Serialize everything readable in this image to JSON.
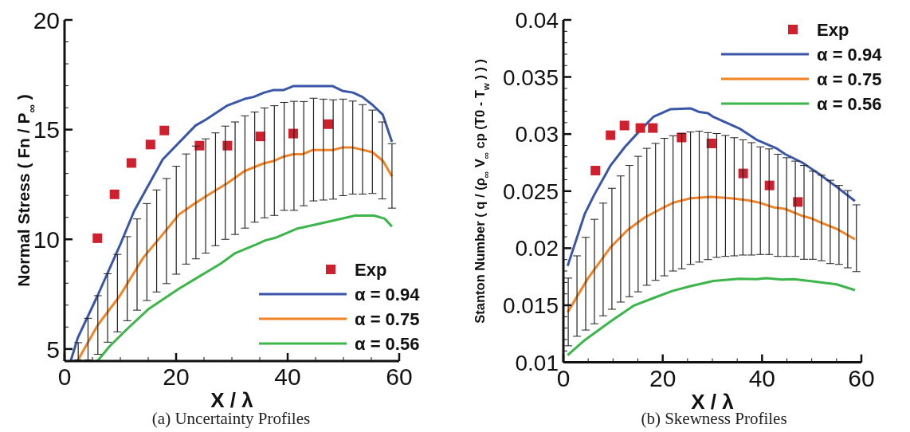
{
  "chart_data": [
    {
      "type": "line",
      "title": "(a) Uncertainty Profiles",
      "xlabel": "X /  λ",
      "ylabel": "Normal Stress ( Fn / P$_{∞}$ )",
      "xlim": [
        0,
        60
      ],
      "ylim": [
        4.45,
        20
      ],
      "xticks": [
        0,
        {
          "value": 5,
          "label": null
        },
        {
          "value": 10,
          "label": null
        },
        {
          "value": 15,
          "label": null
        },
        20,
        {
          "value": 25,
          "label": null
        },
        {
          "value": 30,
          "label": null
        },
        {
          "value": 35,
          "label": null
        },
        40,
        {
          "value": 45,
          "label": null
        },
        {
          "value": 50,
          "label": null
        },
        {
          "value": 55,
          "label": null
        },
        60
      ],
      "yticks": [
        5,
        {
          "value": 6,
          "label": null
        },
        {
          "value": 7,
          "label": null
        },
        {
          "value": 8,
          "label": null
        },
        {
          "value": 9,
          "label": null
        },
        10,
        {
          "value": 11,
          "label": null
        },
        {
          "value": 12,
          "label": null
        },
        {
          "value": 13,
          "label": null
        },
        {
          "value": 14,
          "label": null
        },
        15,
        {
          "value": 16,
          "label": null
        },
        {
          "value": 17,
          "label": null
        },
        {
          "value": 18,
          "label": null
        },
        {
          "value": 19,
          "label": null
        },
        20
      ],
      "legend": "bottom right",
      "series": [
        {
          "type": "bar",
          "color": "#222222",
          "x": [
            2.45,
            4.21,
            5.97,
            7.72,
            9.48,
            11.24,
            13.0,
            14.76,
            16.51,
            18.27,
            20.03,
            21.79,
            23.55,
            25.3,
            27.06,
            28.82,
            30.58,
            32.34,
            34.09,
            35.85,
            37.61,
            39.37,
            41.13,
            42.88,
            44.64,
            46.4,
            48.16,
            49.92,
            51.67,
            53.43,
            55.19,
            56.95,
            58.7
          ],
          "base": [
            4.5,
            4.5,
            4.76,
            5.31,
            5.78,
            6.29,
            6.77,
            7.21,
            7.6,
            7.98,
            8.41,
            8.87,
            9.11,
            9.37,
            9.71,
            10.0,
            10.22,
            10.51,
            10.78,
            10.98,
            11.09,
            11.32,
            11.32,
            11.53,
            11.75,
            11.79,
            11.83,
            11.99,
            12.06,
            12.06,
            12.09,
            11.84,
            11.42
          ],
          "values": [
            0.79,
            1.9,
            2.67,
            3.12,
            3.53,
            3.83,
            4.16,
            4.42,
            4.65,
            4.79,
            4.92,
            5.02,
            5.14,
            5.21,
            5.14,
            5.16,
            5.13,
            5.12,
            5.02,
            5.01,
            5.0,
            4.92,
            4.97,
            4.75,
            4.68,
            4.6,
            4.53,
            4.4,
            4.24,
            4.08,
            3.8,
            3.51,
            2.94
          ]
        },
        {
          "type": "scatter",
          "name": "Exp",
          "marker": "square",
          "color": "#d0202e",
          "x": [
            5.9,
            8.96,
            11.98,
            15.4,
            17.9,
            24.2,
            29.2,
            35.1,
            41.0,
            47.3
          ],
          "values": [
            10.05,
            12.05,
            13.48,
            14.32,
            14.96,
            14.27,
            14.27,
            14.69,
            14.82,
            15.25
          ]
        },
        {
          "name": "α  = 0.94",
          "color": "#3a56a8",
          "x": [
            1.1,
            2.4,
            5.9,
            9.9,
            12.5,
            17.6,
            23.5,
            25.3,
            29.2,
            32.3,
            33.9,
            35.8,
            37.4,
            39.2,
            41.0,
            48.1,
            49.8,
            51.7,
            53.4,
            55.2,
            57.05,
            58.7
          ],
          "values": [
            4.45,
            5.53,
            7.42,
            9.71,
            11.3,
            13.64,
            15.19,
            15.45,
            16.1,
            16.4,
            16.49,
            16.69,
            16.8,
            16.8,
            16.98,
            16.98,
            16.77,
            16.69,
            16.49,
            16.13,
            15.68,
            14.44
          ]
        },
        {
          "name": "α  = 0.75",
          "color": "#f28325",
          "x": [
            2.3,
            5.9,
            9.9,
            14.1,
            18.3,
            20.5,
            23.2,
            25.3,
            29.2,
            32.2,
            35.7,
            37.5,
            39.3,
            41.0,
            42.7,
            44.5,
            48.1,
            49.9,
            51.6,
            55.2,
            57.1,
            58.7
          ],
          "values": [
            4.45,
            6.07,
            7.42,
            9.16,
            10.44,
            11.13,
            11.61,
            11.95,
            12.56,
            13.1,
            13.46,
            13.57,
            13.77,
            13.88,
            13.88,
            14.07,
            14.07,
            14.19,
            14.19,
            13.97,
            13.57,
            12.87
          ]
        },
        {
          "name": "α  = 0.56",
          "color": "#3cb54a",
          "x": [
            5.9,
            8.1,
            11.3,
            15.0,
            20.5,
            23.2,
            28.0,
            30.6,
            34.4,
            36.0,
            37.8,
            41.6,
            45.0,
            48.8,
            52.1,
            55.5,
            57.4,
            58.7
          ],
          "values": [
            4.45,
            5.13,
            5.93,
            6.81,
            7.75,
            8.16,
            8.89,
            9.37,
            9.77,
            9.95,
            10.07,
            10.48,
            10.67,
            10.89,
            11.08,
            11.08,
            10.94,
            10.58
          ]
        }
      ]
    },
    {
      "type": "line",
      "title": "(b) Skewness Profiles",
      "xlabel": "X / λ",
      "ylabel": "Stanton Number ( q / (ρ$_{∞}$ V$_{∞}$ cp (T0 - T$_{w}$ ) ) )",
      "xlim": [
        0,
        60
      ],
      "ylim": [
        0.01,
        0.04
      ],
      "xticks": [
        0,
        {
          "value": 5,
          "label": null
        },
        {
          "value": 10,
          "label": null
        },
        {
          "value": 15,
          "label": null
        },
        20,
        {
          "value": 25,
          "label": null
        },
        {
          "value": 30,
          "label": null
        },
        {
          "value": 35,
          "label": null
        },
        40,
        {
          "value": 45,
          "label": null
        },
        {
          "value": 50,
          "label": null
        },
        {
          "value": 55,
          "label": null
        },
        60
      ],
      "yticks": [
        0.01,
        {
          "value": 0.011,
          "label": null
        },
        {
          "value": 0.012,
          "label": null
        },
        {
          "value": 0.013,
          "label": null
        },
        {
          "value": 0.014,
          "label": null
        },
        0.015,
        {
          "value": 0.016,
          "label": null
        },
        {
          "value": 0.017,
          "label": null
        },
        {
          "value": 0.018,
          "label": null
        },
        {
          "value": 0.019,
          "label": null
        },
        0.02,
        {
          "value": 0.021,
          "label": null
        },
        {
          "value": 0.022,
          "label": null
        },
        {
          "value": 0.023,
          "label": null
        },
        {
          "value": 0.024,
          "label": null
        },
        0.025,
        {
          "value": 0.026,
          "label": null
        },
        {
          "value": 0.027,
          "label": null
        },
        {
          "value": 0.028,
          "label": null
        },
        {
          "value": 0.029,
          "label": null
        },
        0.03,
        {
          "value": 0.031,
          "label": null
        },
        {
          "value": 0.032,
          "label": null
        },
        {
          "value": 0.033,
          "label": null
        },
        {
          "value": 0.034,
          "label": null
        },
        0.035,
        {
          "value": 0.036,
          "label": null
        },
        {
          "value": 0.037,
          "label": null
        },
        {
          "value": 0.038,
          "label": null
        },
        {
          "value": 0.039,
          "label": null
        },
        0.04
      ],
      "legend": "top right",
      "series": [
        {
          "type": "bar",
          "color": "#222222",
          "x": [
            0.98,
            2.74,
            4.5,
            6.25,
            8.01,
            9.77,
            11.53,
            13.29,
            15.05,
            16.8,
            18.56,
            20.32,
            22.08,
            23.84,
            25.6,
            27.35,
            29.11,
            30.87,
            32.63,
            34.39,
            36.15,
            37.9,
            39.66,
            41.42,
            43.18,
            44.94,
            46.7,
            48.45,
            50.21,
            51.97,
            53.73,
            55.49,
            57.25,
            59.0
          ],
          "base": [
            0.01145,
            0.01228,
            0.01283,
            0.01338,
            0.01408,
            0.01465,
            0.01528,
            0.01575,
            0.01618,
            0.01675,
            0.01718,
            0.01758,
            0.018,
            0.0182,
            0.01858,
            0.01878,
            0.019,
            0.0192,
            0.01928,
            0.01933,
            0.0194,
            0.0194,
            0.01945,
            0.01945,
            0.01928,
            0.01928,
            0.01928,
            0.01903,
            0.01903,
            0.0189,
            0.01865,
            0.01858,
            0.01828,
            0.01795
          ],
          "values": [
            0.00593,
            0.00705,
            0.00812,
            0.00915,
            0.00987,
            0.0106,
            0.01105,
            0.0115,
            0.01187,
            0.012,
            0.012,
            0.01205,
            0.01185,
            0.01185,
            0.0116,
            0.01147,
            0.01113,
            0.01085,
            0.0106,
            0.01035,
            0.0101,
            0.00985,
            0.00943,
            0.00925,
            0.00895,
            0.00865,
            0.00835,
            0.00822,
            0.00772,
            0.0075,
            0.0073,
            0.00692,
            0.00677,
            0.00585
          ]
        },
        {
          "type": "scatter",
          "name": "Exp",
          "marker": "square",
          "color": "#d0202e",
          "x": [
            6.45,
            9.5,
            12.3,
            15.5,
            18.0,
            23.8,
            29.8,
            36.2,
            41.5,
            47.2
          ],
          "values": [
            0.0268,
            0.0299,
            0.03075,
            0.03053,
            0.03053,
            0.0297,
            0.02918,
            0.02655,
            0.0255,
            0.02405
          ]
        },
        {
          "name": "α  = 0.94",
          "color": "#3a56a8",
          "x": [
            0.86,
            4.3,
            6.3,
            9.5,
            12.4,
            15.3,
            18.1,
            21.6,
            25.6,
            27.4,
            29.1,
            30.2,
            35.4,
            38.9,
            42.9,
            44.6,
            48.1,
            51.5,
            55.0,
            58.7
          ],
          "values": [
            0.01845,
            0.023,
            0.02475,
            0.02725,
            0.02888,
            0.03025,
            0.0315,
            0.03218,
            0.03225,
            0.03193,
            0.03183,
            0.0315,
            0.0305,
            0.0295,
            0.02875,
            0.02825,
            0.0275,
            0.0265,
            0.02538,
            0.02413
          ]
        },
        {
          "name": "α  = 0.75",
          "color": "#f28325",
          "x": [
            0.86,
            4.9,
            9.5,
            12.9,
            16.4,
            19.9,
            22.2,
            25.6,
            29.7,
            33.7,
            37.1,
            39.4,
            42.3,
            44.6,
            48.1,
            49.8,
            52.1,
            55.0,
            58.7
          ],
          "values": [
            0.01438,
            0.01733,
            0.02008,
            0.02158,
            0.0227,
            0.0235,
            0.024,
            0.02438,
            0.0245,
            0.02438,
            0.0242,
            0.024,
            0.02358,
            0.02345,
            0.02283,
            0.02263,
            0.0222,
            0.0217,
            0.02078
          ]
        },
        {
          "name": "α  = 0.56",
          "color": "#3cb54a",
          "x": [
            0.86,
            4.3,
            9.5,
            14.1,
            18.1,
            21.9,
            25.6,
            30.2,
            35.4,
            38.9,
            40.9,
            44.0,
            46.4,
            51.5,
            55.0,
            58.7
          ],
          "values": [
            0.01063,
            0.01195,
            0.01358,
            0.01495,
            0.01563,
            0.01625,
            0.01668,
            0.01713,
            0.01733,
            0.01728,
            0.01738,
            0.01725,
            0.01728,
            0.01703,
            0.01683,
            0.01633
          ]
        }
      ]
    }
  ]
}
